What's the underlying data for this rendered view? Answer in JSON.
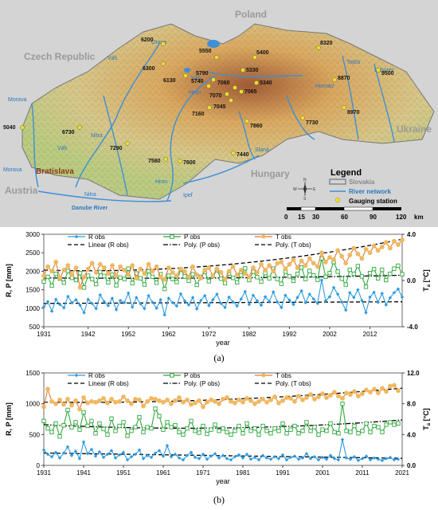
{
  "map": {
    "countries": [
      "Czech Republic",
      "Poland",
      "Ukraine",
      "Hungary",
      "Austria"
    ],
    "city": "Bratislava",
    "rivers": [
      "Morava",
      "Morava",
      "Váh",
      "Váh",
      "Váh",
      "Nitra",
      "Nitra",
      "Hron",
      "Hron",
      "Ipeľ",
      "Slaná",
      "Hornád",
      "Topľa",
      "Laborec",
      "Danube River",
      "Orava"
    ],
    "stations": [
      "6200",
      "6300",
      "6130",
      "5550",
      "5400",
      "8320",
      "5790",
      "5740",
      "5330",
      "7060",
      "5340",
      "7070",
      "7065",
      "7045",
      "7160",
      "8870",
      "9500",
      "5040",
      "6730",
      "7290",
      "7860",
      "7730",
      "8970",
      "7580",
      "7600",
      "7440"
    ],
    "legend": {
      "title": "Legend",
      "items": [
        "Slovakia",
        "River network",
        "Gauging station"
      ],
      "scale_labels": [
        "0",
        "15",
        "30",
        "60",
        "90",
        "120"
      ],
      "scale_unit": "km",
      "compass": [
        "N",
        "S",
        "W",
        "E"
      ]
    },
    "colors": {
      "terrain_low": "#c9d88e",
      "terrain_mid": "#d9a860",
      "terrain_high": "#a05a34",
      "river": "#3d8fd6",
      "station": "#f0e020",
      "outside": "#cfcfcf"
    }
  },
  "captions": {
    "a": "(a)",
    "b": "(b)"
  },
  "chart_data": [
    {
      "type": "line",
      "x_tick_labels": [
        "1931",
        "1942",
        "1952",
        "1962",
        "1972",
        "1982",
        "1992",
        "2002",
        "2012"
      ],
      "xlabel": "year",
      "ylabel": "R, P [mm]",
      "y2label": "T",
      "y2label_sub": "a",
      "y2label_unit": " [°C]",
      "ylim": [
        500,
        3000
      ],
      "y_ticks": [
        500,
        1000,
        1500,
        2000,
        2500,
        3000
      ],
      "y2lim": [
        -4.0,
        4.0
      ],
      "y2_ticks": [
        "-4.0",
        "0.0",
        "4.0"
      ],
      "xlim": [
        1931,
        2020
      ],
      "legend": [
        "R obs",
        "P obs",
        "T obs",
        "Linear (R obs)",
        "Poly. (P obs)",
        "Poly. (T obs)"
      ],
      "series": [
        {
          "name": "R obs",
          "axis": "left",
          "color": "#2e9be0",
          "marker": "diamond",
          "x_start": 1931,
          "values": [
            1030,
            1180,
            920,
            1240,
            1100,
            1010,
            1320,
            1150,
            1230,
            1080,
            880,
            1240,
            1130,
            990,
            1360,
            1180,
            1070,
            1270,
            960,
            1210,
            1150,
            1410,
            1030,
            1290,
            1120,
            990,
            1340,
            1160,
            1000,
            1230,
            820,
            1270,
            1150,
            1060,
            1390,
            1200,
            1090,
            1290,
            980,
            1210,
            1340,
            1070,
            1230,
            1380,
            1130,
            1020,
            1300,
            1170,
            1060,
            1250,
            1450,
            1100,
            1350,
            1200,
            1080,
            1310,
            1180,
            1440,
            1170,
            1020,
            1350,
            1220,
            1100,
            1290,
            1470,
            1150,
            1380,
            1250,
            1130,
            1760,
            1200,
            1310,
            1560,
            1380,
            1170,
            950,
            1420,
            1290,
            1500,
            1210,
            880,
            1300,
            1430,
            1160,
            1400,
            1090,
            1280,
            1420,
            1520,
            1300
          ]
        },
        {
          "name": "P obs",
          "axis": "left",
          "color": "#2ea83c",
          "marker": "square",
          "x_start": 1931,
          "values": [
            1720,
            1850,
            1610,
            1930,
            1800,
            1690,
            2010,
            1820,
            1760,
            1950,
            1560,
            1880,
            1790,
            1650,
            1980,
            1870,
            1700,
            1910,
            1620,
            1830,
            1790,
            2070,
            1680,
            1940,
            1810,
            1640,
            2000,
            1850,
            1690,
            1920,
            1520,
            1880,
            1790,
            1710,
            2050,
            1860,
            1740,
            1920,
            1630,
            1850,
            1980,
            1730,
            1870,
            2030,
            1800,
            1680,
            1940,
            1820,
            1700,
            1890,
            2080,
            1760,
            1990,
            1840,
            1720,
            1950,
            1810,
            2070,
            1790,
            1660,
            1990,
            1860,
            1740,
            1930,
            2100,
            1790,
            2010,
            1890,
            1770,
            2350,
            1850,
            1950,
            2250,
            1990,
            1800,
            1640,
            2040,
            1930,
            2140,
            1860,
            1580,
            1950,
            2060,
            1810,
            2040,
            1760,
            1930,
            2070,
            2150,
            1920
          ]
        },
        {
          "name": "T obs",
          "axis": "right",
          "color": "#e07a2e",
          "marker": "circle",
          "marker_fill": "#f0b860",
          "x_start": 1931,
          "values": [
            0.4,
            1.2,
            0.8,
            1.6,
            0.2,
            0.9,
            1.3,
            0.5,
            1.1,
            -0.6,
            0.3,
            1.0,
            1.5,
            0.7,
            1.4,
            1.1,
            0.6,
            1.3,
            0.4,
            1.2,
            0.9,
            0.5,
            1.3,
            0.2,
            1.0,
            0.6,
            1.4,
            0.8,
            1.2,
            0.3,
            0.1,
            1.1,
            0.7,
            0.4,
            1.0,
            0.8,
            0.3,
            1.2,
            0.5,
            0.2,
            0.9,
            1.1,
            0.4,
            1.0,
            0.7,
            0.1,
            0.8,
            1.2,
            0.5,
            0.9,
            0.6,
            0.3,
            1.1,
            0.7,
            1.4,
            0.9,
            1.3,
            0.8,
            1.5,
            1.6,
            1.0,
            1.4,
            1.8,
            1.1,
            1.7,
            1.3,
            1.9,
            1.5,
            1.2,
            2.4,
            1.6,
            2.0,
            1.8,
            2.6,
            2.1,
            1.5,
            2.2,
            2.8,
            2.3,
            1.9,
            2.7,
            2.4,
            3.0,
            2.6,
            2.9,
            3.3,
            2.8,
            3.4,
            3.1,
            3.5
          ]
        }
      ],
      "trends": [
        {
          "name": "Linear (R obs)",
          "axis": "left",
          "style": "dashed",
          "kind": "linear",
          "from": [
            1931,
            1130
          ],
          "to": [
            2020,
            1175
          ]
        },
        {
          "name": "Poly. (P obs)",
          "axis": "left",
          "style": "dashdot",
          "kind": "poly",
          "coef": [
            1820,
            -0.8,
            0.018
          ]
        },
        {
          "name": "Poly. (T obs)",
          "axis": "right",
          "style": "dashed",
          "kind": "poly",
          "coef": [
            0.9,
            -0.01,
            0.00045
          ]
        }
      ]
    },
    {
      "type": "line",
      "x_tick_labels": [
        "1931",
        "1941",
        "1951",
        "1961",
        "1971",
        "1981",
        "1991",
        "2001",
        "2011",
        "2021"
      ],
      "xlabel": "year",
      "ylabel": "R, P [mm]",
      "y2label": "T",
      "y2label_sub": "a",
      "y2label_unit": " [°C]",
      "ylim": [
        0,
        1500
      ],
      "y_ticks": [
        0,
        500,
        1000,
        1500
      ],
      "y2lim": [
        0.0,
        12.0
      ],
      "y2_ticks": [
        "0.0",
        "4.0",
        "8.0",
        "12.0"
      ],
      "xlim": [
        1931,
        2021
      ],
      "legend": [
        "R obs",
        "P obs",
        "T obs",
        "Linear (R obs)",
        "Poly. (P obs)",
        "Poly. (T obs)"
      ],
      "series": [
        {
          "name": "R obs",
          "axis": "left",
          "color": "#2e9be0",
          "marker": "diamond",
          "x_start": 1931,
          "values": [
            250,
            180,
            140,
            210,
            120,
            200,
            300,
            160,
            230,
            110,
            380,
            190,
            260,
            150,
            220,
            130,
            180,
            240,
            120,
            170,
            210,
            90,
            140,
            180,
            250,
            110,
            160,
            130,
            200,
            240,
            150,
            320,
            140,
            180,
            120,
            90,
            160,
            210,
            130,
            110,
            180,
            100,
            150,
            190,
            120,
            160,
            110,
            90,
            140,
            170,
            120,
            180,
            100,
            130,
            90,
            160,
            120,
            100,
            140,
            110,
            170,
            90,
            130,
            150,
            100,
            120,
            190,
            110,
            140,
            90,
            130,
            100,
            160,
            110,
            90,
            420,
            120,
            100,
            140,
            80,
            110,
            150,
            90,
            120,
            100,
            80,
            110,
            130,
            90,
            100
          ]
        },
        {
          "name": "P obs",
          "axis": "left",
          "color": "#2ea83c",
          "marker": "square",
          "x_start": 1931,
          "values": [
            720,
            600,
            540,
            680,
            470,
            650,
            900,
            620,
            700,
            580,
            860,
            640,
            720,
            520,
            680,
            590,
            500,
            760,
            560,
            640,
            700,
            480,
            560,
            620,
            780,
            540,
            620,
            600,
            920,
            800,
            580,
            700,
            620,
            650,
            540,
            500,
            600,
            720,
            560,
            530,
            640,
            510,
            580,
            660,
            560,
            600,
            540,
            500,
            560,
            640,
            520,
            680,
            560,
            600,
            500,
            640,
            560,
            520,
            600,
            560,
            680,
            520,
            580,
            640,
            520,
            560,
            700,
            560,
            620,
            500,
            580,
            560,
            680,
            540,
            520,
            1000,
            560,
            540,
            640,
            520,
            560,
            680,
            540,
            640,
            620,
            540,
            660,
            700,
            660,
            680
          ]
        },
        {
          "name": "T obs",
          "axis": "right",
          "color": "#e07a2e",
          "marker": "circle",
          "marker_fill": "#f0b860",
          "x_start": 1931,
          "values": [
            7.6,
            9.9,
            8.3,
            8.0,
            8.5,
            7.9,
            8.6,
            7.8,
            8.4,
            7.3,
            8.8,
            8.1,
            8.3,
            8.2,
            8.4,
            8.7,
            8.1,
            8.6,
            8.2,
            8.3,
            8.9,
            8.4,
            8.0,
            8.6,
            8.5,
            7.7,
            8.3,
            8.7,
            8.6,
            8.4,
            8.2,
            8.5,
            8.0,
            8.4,
            8.8,
            8.2,
            8.5,
            7.9,
            8.1,
            8.4,
            7.6,
            8.2,
            8.5,
            8.3,
            8.0,
            8.6,
            8.8,
            8.3,
            8.1,
            8.5,
            8.2,
            8.7,
            8.4,
            8.0,
            8.3,
            8.6,
            8.2,
            8.5,
            8.9,
            8.1,
            8.4,
            8.8,
            8.7,
            8.3,
            9.0,
            8.5,
            8.8,
            9.2,
            8.6,
            8.9,
            9.3,
            8.8,
            9.1,
            9.5,
            9.0,
            8.7,
            9.4,
            9.2,
            9.6,
            9.0,
            9.3,
            9.8,
            9.5,
            9.9,
            9.4,
            10.0,
            9.6,
            10.3,
            10.4,
            9.7
          ]
        }
      ],
      "trends": [
        {
          "name": "Linear (R obs)",
          "axis": "left",
          "style": "dashed",
          "kind": "linear",
          "from": [
            1931,
            200
          ],
          "to": [
            2021,
            115
          ]
        },
        {
          "name": "Poly. (P obs)",
          "axis": "left",
          "style": "dashdot",
          "kind": "poly",
          "coef": [
            660,
            -3.2,
            0.045
          ]
        },
        {
          "name": "Poly. (T obs)",
          "axis": "right",
          "style": "dashed",
          "kind": "poly",
          "coef": [
            8.2,
            -0.005,
            0.00028
          ]
        }
      ]
    }
  ]
}
